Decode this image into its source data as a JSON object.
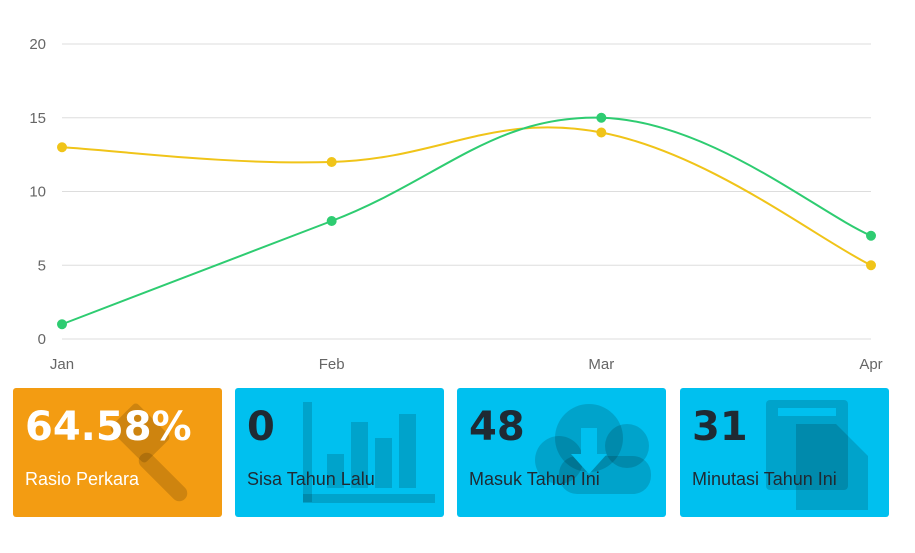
{
  "chart_data": {
    "type": "line",
    "categories": [
      "Jan",
      "Feb",
      "Mar",
      "Apr"
    ],
    "series": [
      {
        "values": [
          13,
          12,
          14,
          5
        ],
        "color": "#f0c419"
      },
      {
        "values": [
          1,
          8,
          15,
          7
        ],
        "color": "#2ecc71"
      }
    ],
    "ylim": [
      0,
      20
    ],
    "yticks": [
      "0",
      "5",
      "10",
      "15",
      "20"
    ],
    "grid": true,
    "curve": "smooth"
  },
  "cards": [
    {
      "value": "64.58%",
      "label": "Rasio Perkara",
      "color": "#f39c12",
      "icon": "gavel-icon"
    },
    {
      "value": "0",
      "label": "Sisa Tahun Lalu",
      "color": "#00c0ef",
      "icon": "bar-chart-icon"
    },
    {
      "value": "48",
      "label": "Masuk Tahun Ini",
      "color": "#00c0ef",
      "icon": "cloud-download-icon"
    },
    {
      "value": "31",
      "label": "Minutasi Tahun Ini",
      "color": "#00c0ef",
      "icon": "copy-document-icon"
    }
  ]
}
